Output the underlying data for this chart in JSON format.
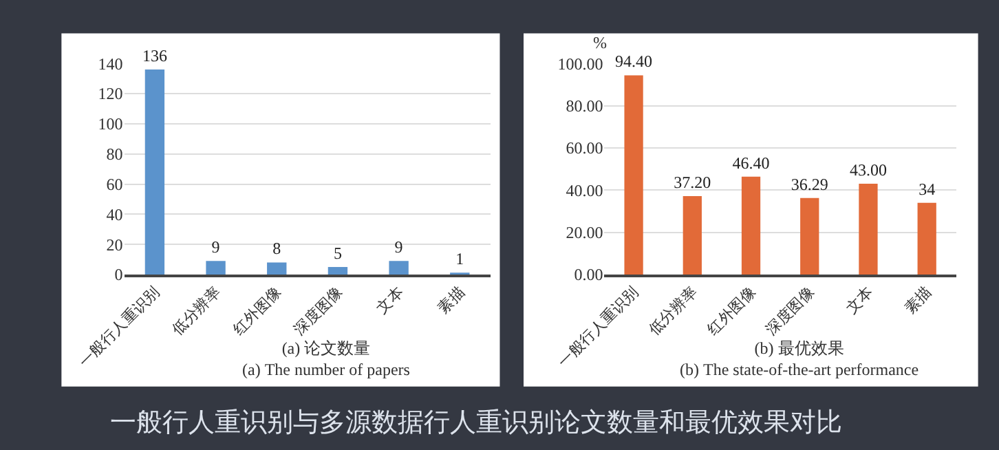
{
  "chart_data": [
    {
      "type": "bar",
      "xlabel": "(a) 论文数量\n(a) The number of papers",
      "categories": [
        "一般行人重识别",
        "低分辨率",
        "红外图像",
        "深度图像",
        "文本",
        "素描"
      ],
      "values": [
        136,
        9,
        8,
        5,
        9,
        1
      ],
      "color": "#5b93cc",
      "ylim": [
        0,
        140
      ],
      "yticks": [
        0,
        20,
        40,
        60,
        80,
        100,
        120,
        140
      ],
      "grid": "y",
      "data_labels": true,
      "annotations": [
        "一般行人重识别与多源数据行人重识别论文数量和最优效果对比"
      ]
    },
    {
      "type": "bar",
      "xlabel": "(b) 最优效果\n(b) The state-of-the-art performance",
      "ylabel": "%",
      "categories": [
        "一般行人重识别",
        "低分辨率",
        "红外图像",
        "深度图像",
        "文本",
        "素描"
      ],
      "values": [
        94.4,
        37.2,
        46.4,
        36.29,
        43.0,
        34
      ],
      "value_labels": [
        "94.40",
        "37.20",
        "46.40",
        "36.29",
        "43.00",
        "34"
      ],
      "color": "#e26a38",
      "ylim": [
        0,
        100
      ],
      "yticks": [
        {
          "value": 0,
          "label": "0.00"
        },
        {
          "value": 20,
          "label": "20.00"
        },
        {
          "value": 40,
          "label": "40.00"
        },
        {
          "value": 60,
          "label": "60.00"
        },
        {
          "value": 80,
          "label": "80.00"
        },
        {
          "value": 100,
          "label": "100.00"
        }
      ],
      "grid": "y"
    }
  ]
}
